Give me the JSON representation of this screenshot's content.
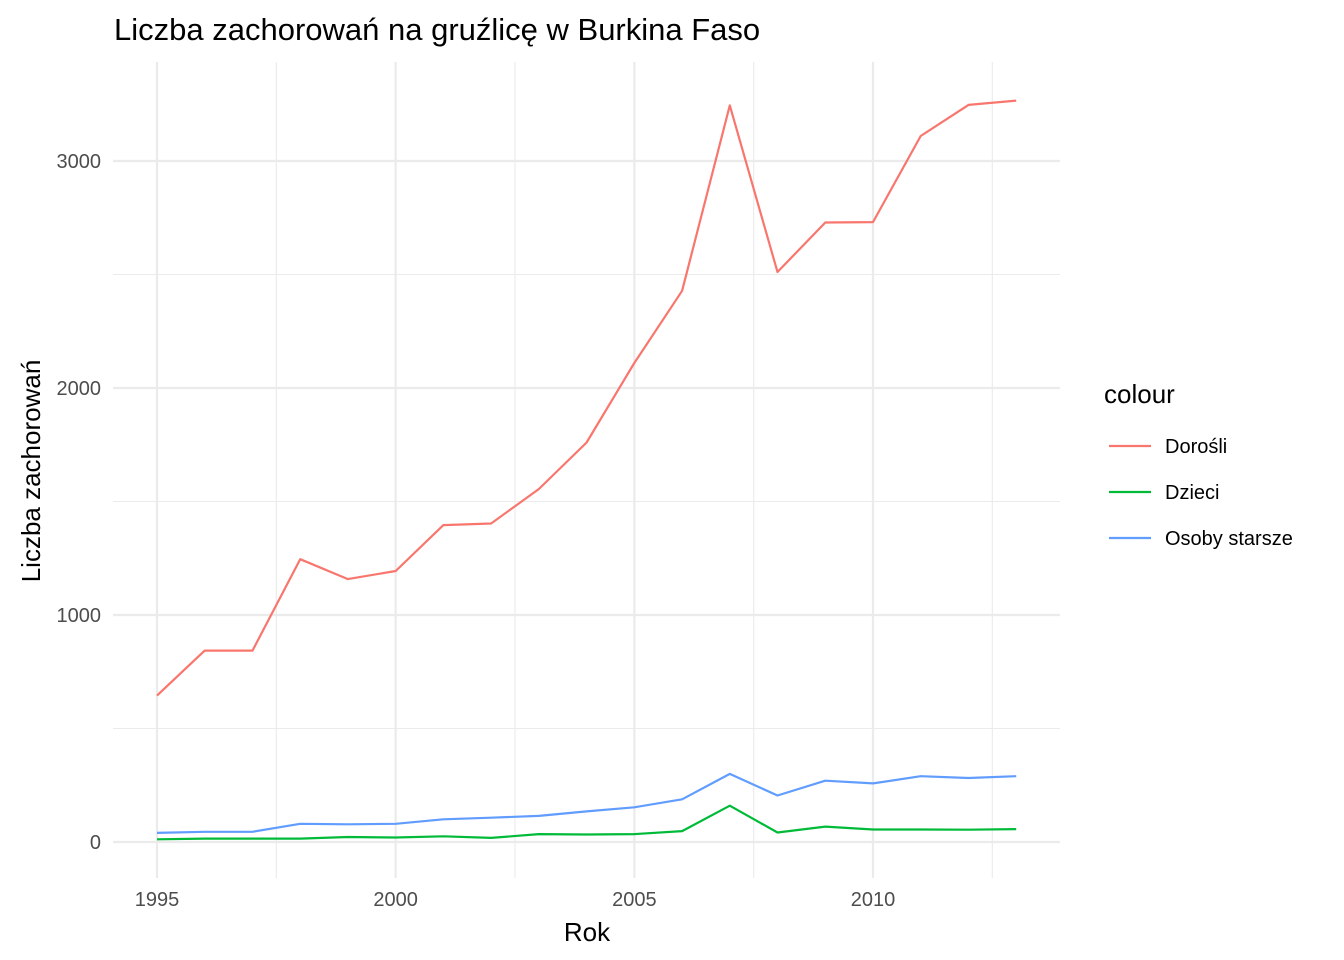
{
  "chart_data": {
    "type": "line",
    "title": "Liczba zachorowań na gruźlicę w Burkina Faso",
    "xlabel": "Rok",
    "ylabel": "Liczba zachorowań",
    "xlim": [
      1995,
      2013
    ],
    "ylim": [
      0,
      3275
    ],
    "x_major_ticks": [
      1995,
      2000,
      2005,
      2010
    ],
    "x_minor_ticks": [
      1997.5,
      2002.5,
      2007.5,
      2012.5
    ],
    "y_major_ticks": [
      0,
      1000,
      2000,
      3000
    ],
    "y_minor_ticks": [
      500,
      1500,
      2500
    ],
    "x_tick_labels": [
      "1995",
      "2000",
      "2005",
      "2010"
    ],
    "y_tick_labels": [
      "0",
      "1000",
      "2000",
      "3000"
    ],
    "grid": true,
    "legend": {
      "title": "colour",
      "position": "right"
    },
    "x": [
      1995,
      1996,
      1997,
      1998,
      1999,
      2000,
      2001,
      2002,
      2003,
      2004,
      2005,
      2006,
      2007,
      2008,
      2009,
      2010,
      2011,
      2012,
      2013
    ],
    "series": [
      {
        "name": "Dorośli",
        "color": "#F8766D",
        "values": [
          645,
          843,
          843,
          1246,
          1158,
          1194,
          1396,
          1403,
          1555,
          1760,
          2110,
          2428,
          3245,
          2511,
          2729,
          2731,
          3110,
          3247,
          3266
        ]
      },
      {
        "name": "Dzieci",
        "color": "#00BA38",
        "values": [
          12,
          15,
          15,
          15,
          22,
          20,
          25,
          18,
          35,
          33,
          35,
          48,
          160,
          42,
          68,
          55,
          55,
          54,
          57
        ]
      },
      {
        "name": "Osoby starsze",
        "color": "#619CFF",
        "values": [
          40,
          45,
          45,
          80,
          78,
          80,
          100,
          107,
          115,
          135,
          153,
          188,
          300,
          205,
          270,
          258,
          290,
          282,
          290
        ]
      }
    ]
  }
}
